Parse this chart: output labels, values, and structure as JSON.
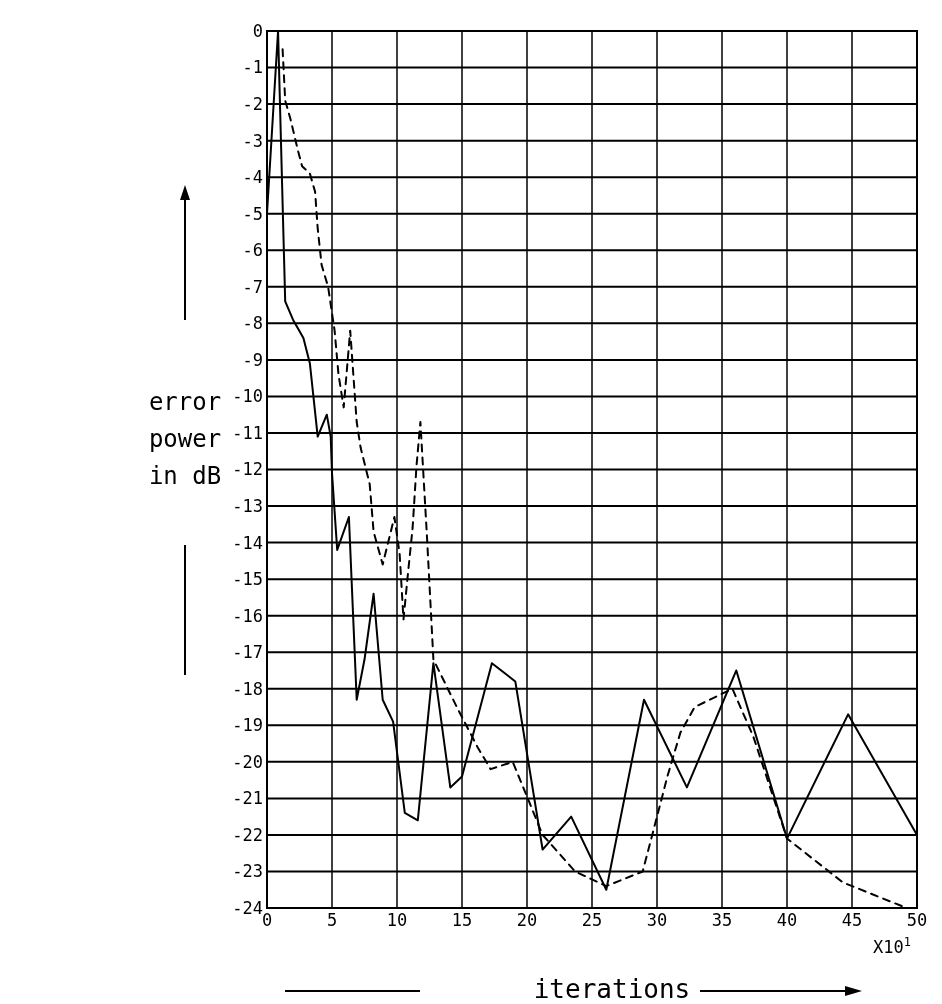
{
  "chart_data": {
    "type": "line",
    "xlabel": "iterations",
    "ylabel": "error power in dB",
    "annotations": [
      "X10$^{1}$"
    ],
    "xlim": [
      0,
      50
    ],
    "ylim": [
      -24,
      0
    ],
    "xticks": [
      0,
      5,
      10,
      15,
      20,
      25,
      30,
      35,
      40,
      45,
      50
    ],
    "yticks": [
      0,
      -1,
      -2,
      -3,
      -4,
      -5,
      -6,
      -7,
      -8,
      -9,
      -10,
      -11,
      -12,
      -13,
      -14,
      -15,
      -16,
      -17,
      -18,
      -19,
      -20,
      -21,
      -22,
      -23,
      -24
    ],
    "grid": true,
    "marker": "none",
    "series": [
      {
        "color": "#000000",
        "line_style": "solid",
        "x": [
          0,
          0.85,
          1.4,
          2,
          2.8,
          3.3,
          3.9,
          4.6,
          4.9,
          5,
          5.4,
          6.3,
          6.9,
          7.5,
          8.2,
          8.9,
          9.7,
          10.6,
          11.6,
          12.8,
          14.1,
          15,
          17.3,
          19.1,
          21.2,
          23.4,
          26.1,
          29,
          32.3,
          36.1,
          40,
          44.7,
          50
        ],
        "values": [
          -5,
          0,
          -7.4,
          -7.9,
          -8.4,
          -9.1,
          -11.1,
          -10.5,
          -11.1,
          -12.1,
          -14.2,
          -13.3,
          -18.3,
          -17.2,
          -15.4,
          -18.3,
          -18.9,
          -21.4,
          -21.6,
          -17.3,
          -20.7,
          -20.4,
          -17.3,
          -17.8,
          -22.4,
          -21.5,
          -23.5,
          -18.3,
          -20.7,
          -17.5,
          -22.1,
          -18.7,
          -22
        ]
      },
      {
        "color": "#000000",
        "line_style": "dashed",
        "x": [
          1.2,
          1.4,
          1.8,
          2,
          2.4,
          2.7,
          3.3,
          3.7,
          3.9,
          4.2,
          4.7,
          5.2,
          5.5,
          5.9,
          6.4,
          6.9,
          7.2,
          7.9,
          8.2,
          8.9,
          9.8,
          10.2,
          10.5,
          10.8,
          11.2,
          11.5,
          11.8,
          12.3,
          12.8,
          14.6,
          16.2,
          17.2,
          18.9,
          20.4,
          21.2,
          23.7,
          26.1,
          28.9,
          30,
          30.8,
          31.8,
          32.9,
          35.8,
          37.4,
          40,
          44.3,
          49.2
        ],
        "values": [
          -0.5,
          -1.9,
          -2.4,
          -2.7,
          -3.3,
          -3.7,
          -3.9,
          -4.4,
          -5.4,
          -6.4,
          -7,
          -8.2,
          -9.4,
          -10.3,
          -8.2,
          -10.7,
          -11.4,
          -12.4,
          -13.7,
          -14.6,
          -13.3,
          -14.3,
          -16.1,
          -15,
          -13.6,
          -11.9,
          -10.7,
          -13.8,
          -17.2,
          -18.5,
          -19.6,
          -20.2,
          -20,
          -21.3,
          -22,
          -23,
          -23.4,
          -23,
          -21.5,
          -20.4,
          -19.2,
          -18.5,
          -18,
          -19.3,
          -22.1,
          -23.3,
          -24
        ]
      }
    ]
  }
}
